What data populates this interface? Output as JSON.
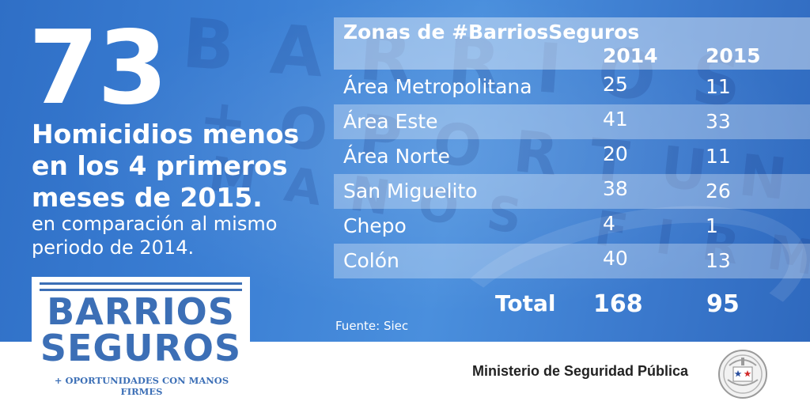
{
  "stats": {
    "big_number": "73",
    "headline": "Homicidios menos en los 4 primeros meses de 2015.",
    "subline": "en comparación al mismo periodo de 2014."
  },
  "table": {
    "header": {
      "zone": "Zonas de #BarriosSeguros",
      "year1": "2014",
      "year2": "2015"
    },
    "rows": [
      {
        "zone": "Área Metropolitana",
        "y2014": "25",
        "y2015": "11"
      },
      {
        "zone": "Área Este",
        "y2014": "41",
        "y2015": "33"
      },
      {
        "zone": "Área Norte",
        "y2014": "20",
        "y2015": "11"
      },
      {
        "zone": "San Miguelito",
        "y2014": "38",
        "y2015": "26"
      },
      {
        "zone": "Chepo",
        "y2014": "4",
        "y2015": "1"
      },
      {
        "zone": "Colón",
        "y2014": "40",
        "y2015": "13"
      }
    ],
    "total": {
      "label": "Total",
      "y2014": "168",
      "y2015": "95"
    },
    "source": "Fuente: Siec"
  },
  "logo": {
    "word1": "BARRIOS",
    "word2": "SEGUROS",
    "tagline": "+ OPORTUNIDADES CON MANOS FIRMES"
  },
  "footer": {
    "ministry": "Ministerio de Seguridad Pública",
    "seal_icon": "ministry-seal-icon"
  },
  "colors": {
    "background_blue": "#3b7fd4",
    "logo_blue": "#3c6fb6",
    "white": "#ffffff"
  }
}
